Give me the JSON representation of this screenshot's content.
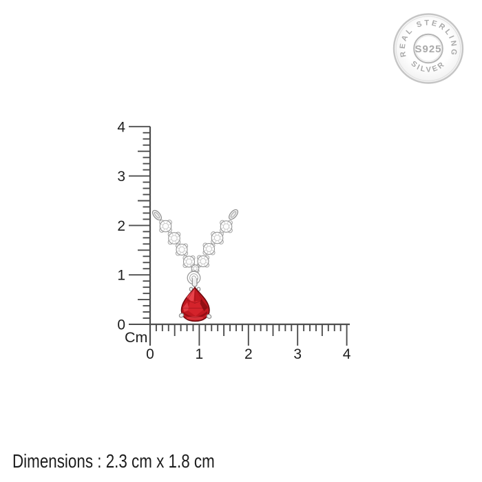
{
  "stamp": {
    "arc_top": "REAL STERLING",
    "center": "S925",
    "arc_bottom": "SILVER"
  },
  "rulers": {
    "unit": "Cm",
    "vertical_labels": [
      "0",
      "1",
      "2",
      "3",
      "4"
    ],
    "horizontal_labels": [
      "0",
      "1",
      "2",
      "3",
      "4"
    ]
  },
  "measurements": {
    "pendant_height_cm": 2.3,
    "pendant_width_cm": 1.8
  },
  "footer": {
    "dimensions": "Dimensions : 2.3 cm x 1.8 cm"
  },
  "colors": {
    "background": "#ffffff",
    "ruler_line": "#4d4d4d",
    "label_text": "#1d1d1d",
    "stamp_silver": "#a9a9a9",
    "stamp_ring": "#c5c5c5",
    "metal_silver": "#8f8f8f",
    "gem_red": "#c01820",
    "gem_red_mid": "#d4232b",
    "gem_red_light": "#ee4a52",
    "gem_red_dark": "#8a0d12",
    "gem_outline": "#6f090e"
  }
}
